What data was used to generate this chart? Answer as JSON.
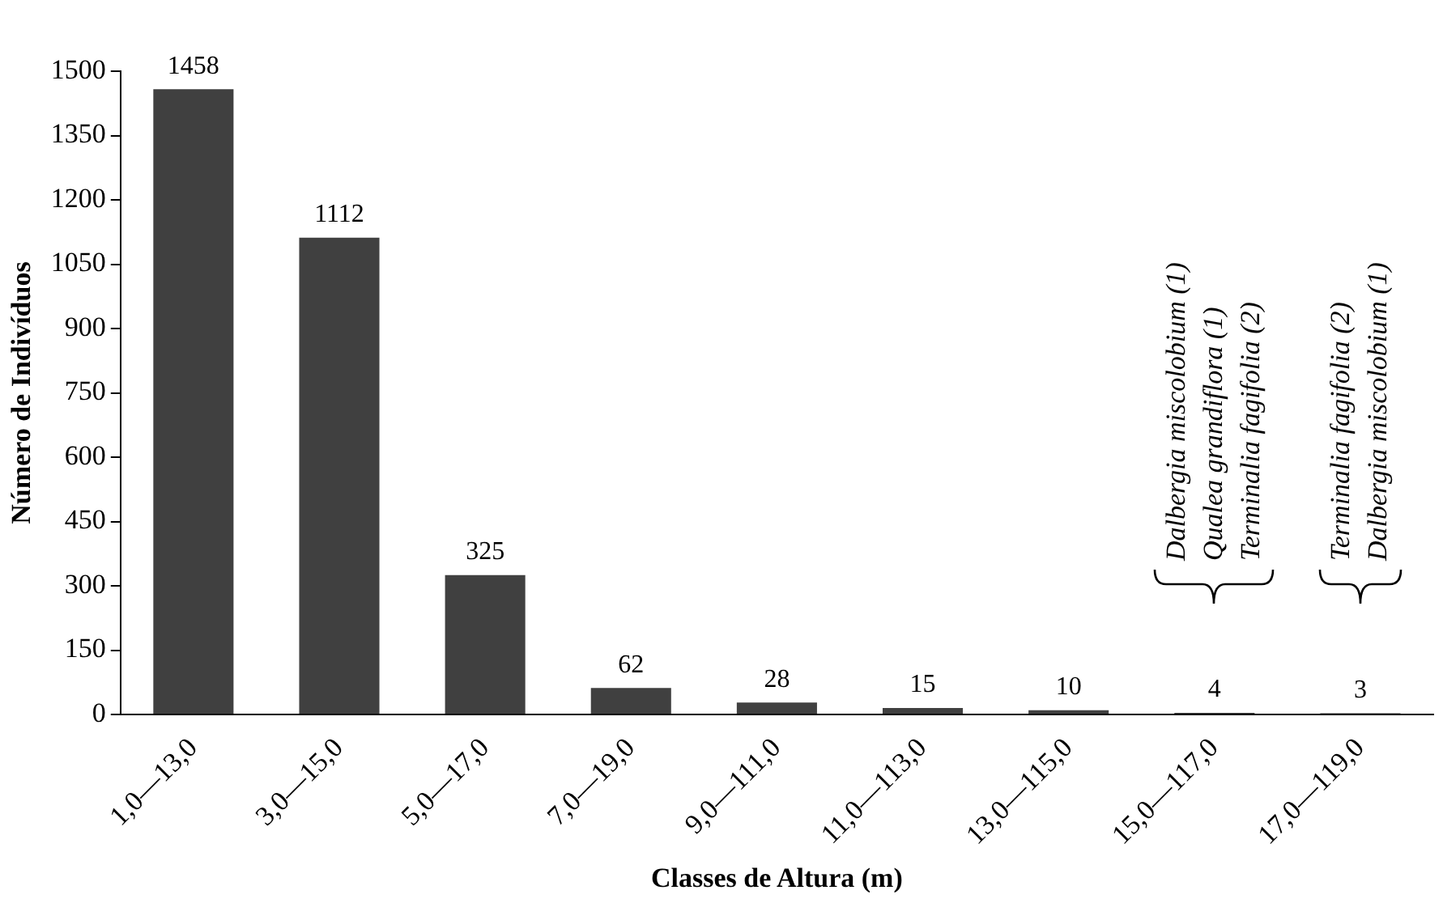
{
  "chart_data": {
    "type": "bar",
    "xlabel": "Classes de Altura (m)",
    "ylabel": "Número de Indivíduos",
    "categories": [
      "1,0—13,0",
      "3,0—15,0",
      "5,0—17,0",
      "7,0—19,0",
      "9,0—111,0",
      "11,0—113,0",
      "13,0—115,0",
      "15,0—117,0",
      "17,0—119,0"
    ],
    "values": [
      1458,
      1112,
      325,
      62,
      28,
      15,
      10,
      4,
      3
    ],
    "color": "#404040",
    "ylim": [
      0,
      1500
    ],
    "yticks": [
      0,
      150,
      300,
      450,
      600,
      750,
      900,
      1050,
      1200,
      1350,
      1500
    ],
    "grid": false,
    "data_labels": true,
    "annotations": [
      "Dalbergia miscolobium (1)",
      "Qualea grandiflora (1)",
      "Terminalia fagifolia (2)",
      "Terminalia fagifolia (2)",
      "Dalbergia miscolobium (1)"
    ]
  }
}
